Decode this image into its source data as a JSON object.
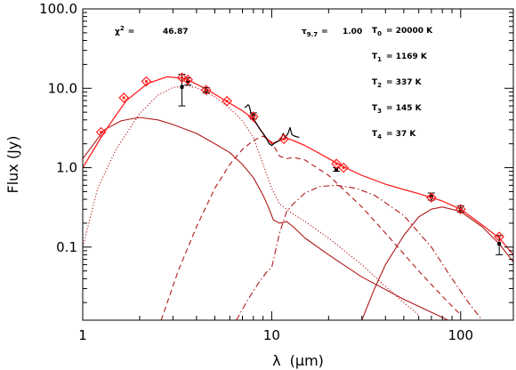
{
  "chart_data": {
    "type": "scatter",
    "title": "",
    "xlabel_lambda": "λ",
    "xlabel_unit": "(μm)",
    "ylabel": "Flux (Jy)",
    "x_scale": "log",
    "y_scale": "log",
    "xlim": [
      1,
      190
    ],
    "ylim": [
      0.012,
      100
    ],
    "x_ticks": [
      {
        "value": 1,
        "label": "1"
      },
      {
        "value": 10,
        "label": "10"
      },
      {
        "value": 100,
        "label": "100"
      }
    ],
    "y_ticks": [
      {
        "value": 0.1,
        "label": "0.1"
      },
      {
        "value": 1,
        "label": "1.0"
      },
      {
        "value": 10,
        "label": "10.0"
      },
      {
        "value": 100,
        "label": "100.0"
      }
    ],
    "annotations": {
      "chi2_label": "χ",
      "chi2_sup": "2",
      "chi2_eq": "=",
      "chi2_value": "46.87",
      "tau_label": "τ",
      "tau_sub": "9.7",
      "tau_eq": "=",
      "tau_value": "1.00",
      "temperatures": [
        {
          "sym": "T",
          "sub": "0",
          "text": "= 20000 K"
        },
        {
          "sym": "T",
          "sub": "1",
          "text": "= 1169 K"
        },
        {
          "sym": "T",
          "sub": "2",
          "text": "= 337 K"
        },
        {
          "sym": "T",
          "sub": "3",
          "text": "= 145 K"
        },
        {
          "sym": "T",
          "sub": "4",
          "text": "= 37 K"
        }
      ]
    },
    "colors": {
      "total_model": "#ff2020",
      "components": "#b01818",
      "model_points": "#ff2020",
      "observations": "#000000",
      "spectrum": "#000000"
    },
    "series": [
      {
        "kind": "model_sed_total",
        "style": "solid",
        "points": [
          [
            1,
            1.0
          ],
          [
            1.3,
            2.8
          ],
          [
            1.7,
            7.0
          ],
          [
            2.2,
            11.5
          ],
          [
            2.8,
            14.0
          ],
          [
            3.5,
            13.2
          ],
          [
            4.5,
            9.8
          ],
          [
            5.8,
            6.8
          ],
          [
            7,
            5.2
          ],
          [
            7.8,
            4.3
          ],
          [
            8.5,
            3.3
          ],
          [
            9.2,
            2.5
          ],
          [
            10,
            2.0
          ],
          [
            11,
            2.2
          ],
          [
            12,
            2.35
          ],
          [
            13,
            2.2
          ],
          [
            15,
            1.9
          ],
          [
            18,
            1.5
          ],
          [
            22,
            1.15
          ],
          [
            25,
            0.98
          ],
          [
            30,
            0.8
          ],
          [
            40,
            0.62
          ],
          [
            50,
            0.53
          ],
          [
            60,
            0.47
          ],
          [
            70,
            0.42
          ],
          [
            80,
            0.38
          ],
          [
            100,
            0.3
          ],
          [
            130,
            0.19
          ],
          [
            160,
            0.13
          ],
          [
            190,
            0.08
          ]
        ]
      },
      {
        "kind": "component_T0",
        "style": "solid",
        "points": [
          [
            1,
            1.3
          ],
          [
            1.3,
            3.0
          ],
          [
            1.6,
            3.9
          ],
          [
            2,
            4.3
          ],
          [
            2.5,
            4.0
          ],
          [
            3,
            3.5
          ],
          [
            4,
            2.7
          ],
          [
            5,
            2.0
          ],
          [
            6,
            1.55
          ],
          [
            7,
            1.1
          ],
          [
            8,
            0.75
          ],
          [
            9,
            0.45
          ],
          [
            9.6,
            0.32
          ],
          [
            10.2,
            0.22
          ],
          [
            11,
            0.2
          ],
          [
            12,
            0.21
          ],
          [
            13,
            0.18
          ],
          [
            15,
            0.13
          ],
          [
            20,
            0.08
          ],
          [
            30,
            0.042
          ],
          [
            50,
            0.022
          ],
          [
            80,
            0.013
          ],
          [
            100,
            0.01
          ]
        ]
      },
      {
        "kind": "component_T1",
        "style": "dotted",
        "points": [
          [
            1,
            0.1
          ],
          [
            1.2,
            0.55
          ],
          [
            1.5,
            1.7
          ],
          [
            2,
            4.8
          ],
          [
            2.5,
            8.2
          ],
          [
            3,
            10.2
          ],
          [
            3.5,
            10.8
          ],
          [
            4,
            10.2
          ],
          [
            5,
            7.8
          ],
          [
            6,
            5.6
          ],
          [
            7,
            3.9
          ],
          [
            8,
            2.4
          ],
          [
            9,
            1.1
          ],
          [
            10,
            0.55
          ],
          [
            11,
            0.35
          ],
          [
            12,
            0.3
          ],
          [
            13,
            0.26
          ],
          [
            15,
            0.21
          ],
          [
            20,
            0.13
          ],
          [
            30,
            0.06
          ],
          [
            40,
            0.032
          ],
          [
            50,
            0.02
          ],
          [
            60,
            0.014
          ]
        ]
      },
      {
        "kind": "component_T2",
        "style": "dashed",
        "points": [
          [
            2.6,
            0.012
          ],
          [
            3.2,
            0.05
          ],
          [
            4,
            0.18
          ],
          [
            5,
            0.55
          ],
          [
            6,
            1.1
          ],
          [
            7,
            1.7
          ],
          [
            8,
            2.2
          ],
          [
            9,
            2.5
          ],
          [
            10,
            2.1
          ],
          [
            11,
            1.4
          ],
          [
            12,
            1.3
          ],
          [
            13,
            1.35
          ],
          [
            15,
            1.25
          ],
          [
            20,
            0.8
          ],
          [
            30,
            0.32
          ],
          [
            40,
            0.15
          ],
          [
            60,
            0.05
          ],
          [
            80,
            0.024
          ],
          [
            100,
            0.014
          ]
        ]
      },
      {
        "kind": "component_T3",
        "style": "dash-dot",
        "points": [
          [
            6.5,
            0.012
          ],
          [
            7.5,
            0.022
          ],
          [
            8.5,
            0.035
          ],
          [
            9.5,
            0.05
          ],
          [
            10,
            0.055
          ],
          [
            11,
            0.15
          ],
          [
            12,
            0.28
          ],
          [
            13,
            0.35
          ],
          [
            15,
            0.48
          ],
          [
            18,
            0.58
          ],
          [
            22,
            0.6
          ],
          [
            28,
            0.55
          ],
          [
            35,
            0.45
          ],
          [
            50,
            0.25
          ],
          [
            70,
            0.1
          ],
          [
            90,
            0.04
          ],
          [
            110,
            0.02
          ],
          [
            130,
            0.012
          ]
        ]
      },
      {
        "kind": "component_T4",
        "style": "solid",
        "points": [
          [
            30,
            0.012
          ],
          [
            35,
            0.03
          ],
          [
            40,
            0.06
          ],
          [
            50,
            0.14
          ],
          [
            60,
            0.24
          ],
          [
            70,
            0.3
          ],
          [
            80,
            0.32
          ],
          [
            100,
            0.28
          ],
          [
            130,
            0.18
          ],
          [
            160,
            0.11
          ],
          [
            190,
            0.065
          ]
        ]
      },
      {
        "kind": "model_photometry",
        "marker": "diamond",
        "points": [
          [
            1.25,
            2.8
          ],
          [
            1.65,
            7.6
          ],
          [
            2.17,
            12.2
          ],
          [
            3.35,
            13.6
          ],
          [
            3.6,
            12.8
          ],
          [
            4.5,
            9.5
          ],
          [
            5.8,
            6.9
          ],
          [
            8,
            4.4
          ],
          [
            11.6,
            2.3
          ],
          [
            22,
            1.12
          ],
          [
            24,
            1.0
          ],
          [
            70,
            0.42
          ],
          [
            100,
            0.3
          ],
          [
            160,
            0.135
          ]
        ]
      },
      {
        "kind": "observed_photometry",
        "marker": "errorbar",
        "points": [
          {
            "x": 3.35,
            "y": 10.4,
            "lo": 6.0,
            "hi": 15.0
          },
          {
            "x": 3.6,
            "y": 12.2,
            "lo": 11.0,
            "hi": 13.5
          },
          {
            "x": 4.5,
            "y": 9.4,
            "lo": 8.7,
            "hi": 10.2
          },
          {
            "x": 8.0,
            "y": 4.5,
            "lo": 4.1,
            "hi": 4.9
          },
          {
            "x": 22,
            "y": 0.95,
            "lo": 0.9,
            "hi": 1.0
          },
          {
            "x": 70,
            "y": 0.43,
            "lo": 0.39,
            "hi": 0.48
          },
          {
            "x": 100,
            "y": 0.3,
            "lo": 0.275,
            "hi": 0.33
          },
          {
            "x": 160,
            "y": 0.11,
            "lo": 0.08,
            "hi": 0.14
          }
        ]
      },
      {
        "kind": "irs_spectrum",
        "style": "solid",
        "points": [
          [
            7.2,
            5.7
          ],
          [
            7.5,
            6.2
          ],
          [
            7.6,
            6.0
          ],
          [
            7.8,
            4.7
          ],
          [
            8.0,
            4.2
          ],
          [
            8.3,
            3.6
          ],
          [
            8.7,
            3.0
          ],
          [
            9.1,
            2.6
          ],
          [
            9.4,
            2.3
          ],
          [
            9.7,
            2.0
          ],
          [
            10,
            1.9
          ],
          [
            10.4,
            2.05
          ],
          [
            10.8,
            2.15
          ],
          [
            11.2,
            2.3
          ],
          [
            11.5,
            2.7
          ],
          [
            11.8,
            2.4
          ],
          [
            12.2,
            2.7
          ],
          [
            12.5,
            3.2
          ],
          [
            12.8,
            2.6
          ],
          [
            13.2,
            2.5
          ],
          [
            13.6,
            2.45
          ],
          [
            14,
            2.4
          ]
        ]
      }
    ]
  }
}
